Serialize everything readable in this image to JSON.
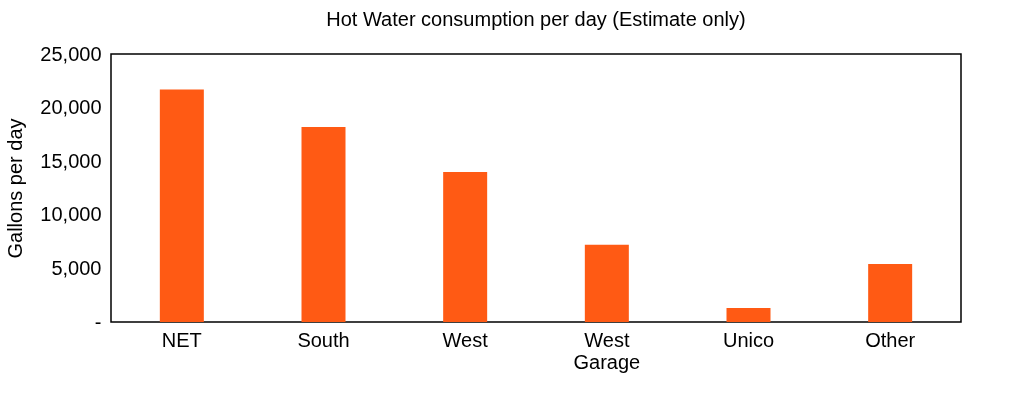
{
  "chart_data": {
    "type": "bar",
    "title": "Hot Water consumption per day (Estimate only)",
    "ylabel": "Gallons per day",
    "categories": [
      "NET",
      "South",
      "West",
      "West Garage",
      "Unico",
      "Other"
    ],
    "values": [
      21700,
      18200,
      14000,
      7200,
      1300,
      5400
    ],
    "color": "#ff5a14",
    "ylim": [
      0,
      25000
    ],
    "yticks": [
      {
        "value": 0,
        "label": "-"
      },
      {
        "value": 5000,
        "label": "5,000"
      },
      {
        "value": 10000,
        "label": "10,000"
      },
      {
        "value": 15000,
        "label": "15,000"
      },
      {
        "value": 20000,
        "label": "20,000"
      },
      {
        "value": 25000,
        "label": "25,000"
      }
    ],
    "grid": false
  }
}
